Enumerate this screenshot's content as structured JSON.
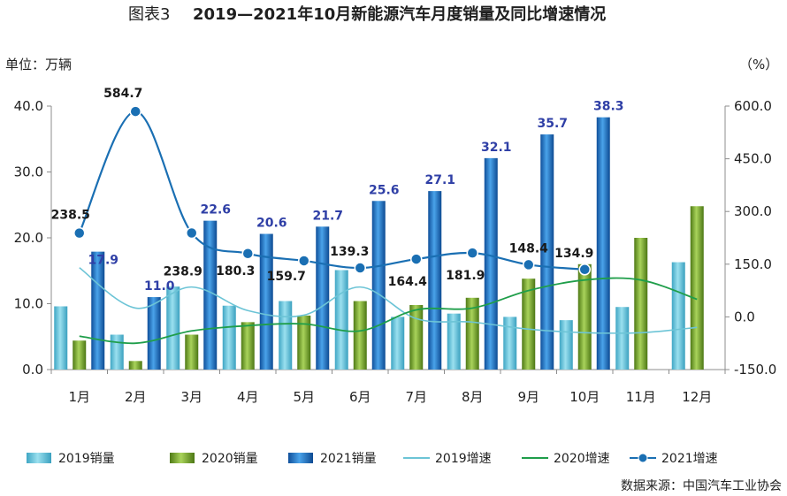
{
  "title": {
    "prefix": "图表3",
    "main": "2019—2021年10月新能源汽车月度销量及同比增速情况"
  },
  "units": {
    "left": "单位：万辆",
    "right": "（%）"
  },
  "source": "数据来源：中国汽车工业协会",
  "colors": {
    "sales_2019": "#5ec1db",
    "sales_2020": "#6f9e2c",
    "sales_2021": "#1e6fc2",
    "growth_2019": "#6cc4d6",
    "growth_2020": "#1f9e4a",
    "growth_2021": "#1a6fb3"
  },
  "chart_data": {
    "type": "bar",
    "categories": [
      "1月",
      "2月",
      "3月",
      "4月",
      "5月",
      "6月",
      "7月",
      "8月",
      "9月",
      "10月",
      "11月",
      "12月"
    ],
    "left_axis": {
      "ticks": [
        "0.0",
        "10.0",
        "20.0",
        "30.0",
        "40.0"
      ],
      "range": [
        0,
        40
      ]
    },
    "right_axis": {
      "ticks": [
        "-150.0",
        "0.0",
        "150.0",
        "300.0",
        "450.0",
        "600.0"
      ],
      "range": [
        -150,
        600
      ]
    },
    "bar_series": [
      {
        "name": "2019销量",
        "values": [
          9.6,
          5.3,
          12.6,
          9.7,
          10.4,
          15.1,
          8.0,
          8.5,
          8.0,
          7.5,
          9.5,
          16.3
        ]
      },
      {
        "name": "2020销量",
        "values": [
          4.4,
          1.3,
          5.3,
          7.2,
          8.2,
          10.4,
          9.8,
          10.9,
          13.8,
          16.0,
          20.0,
          24.8
        ]
      },
      {
        "name": "2021销量",
        "values": [
          17.9,
          11.0,
          22.6,
          20.6,
          21.7,
          25.6,
          27.1,
          32.1,
          35.7,
          38.3,
          null,
          null
        ]
      }
    ],
    "line_series": [
      {
        "name": "2019增速",
        "values": [
          140,
          25,
          85,
          18,
          5,
          85,
          -5,
          -15,
          -35,
          -45,
          -45,
          -30
        ]
      },
      {
        "name": "2020增速",
        "values": [
          -55,
          -75,
          -40,
          -25,
          -20,
          -40,
          20,
          25,
          75,
          105,
          105,
          50
        ]
      },
      {
        "name": "2021增速",
        "values": [
          238.5,
          584.7,
          238.9,
          180.3,
          159.7,
          139.3,
          164.4,
          181.9,
          148.4,
          134.9,
          null,
          null
        ]
      }
    ],
    "data_labels_2021_sales": [
      "17.9",
      "11.0",
      "22.6",
      "20.6",
      "21.7",
      "25.6",
      "27.1",
      "32.1",
      "35.7",
      "38.3"
    ],
    "data_labels_2021_growth": [
      "238.5",
      "584.7",
      "238.9",
      "180.3",
      "159.7",
      "139.3",
      "164.4",
      "181.9",
      "148.4",
      "134.9"
    ],
    "grid": false,
    "legend_position": "bottom"
  }
}
